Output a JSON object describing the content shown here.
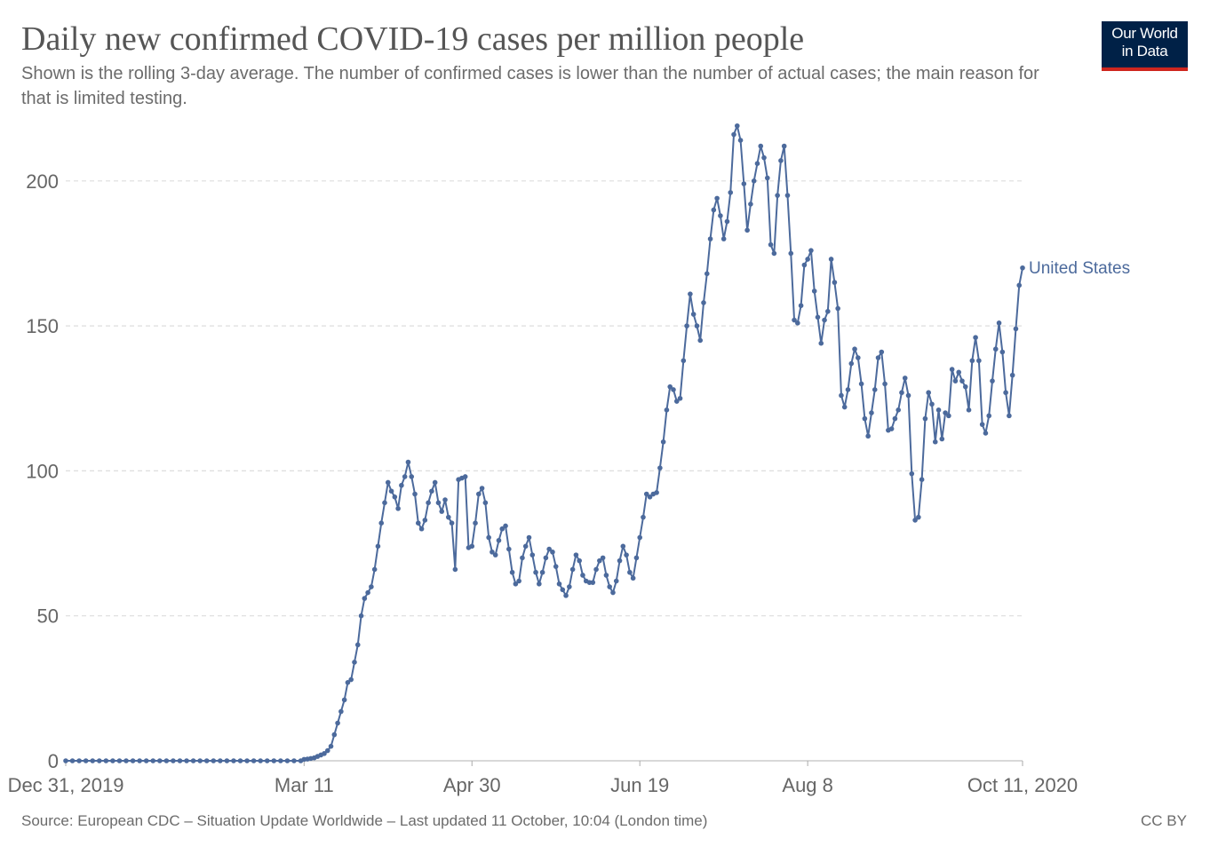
{
  "header": {
    "title": "Daily new confirmed COVID-19 cases per million people",
    "subtitle": "Shown is the rolling 3-day average. The number of confirmed cases is lower than the number of actual cases; the main reason for that is limited testing.",
    "logo_line1": "Our World",
    "logo_line2": "in Data"
  },
  "footer": {
    "source": "Source: European CDC – Situation Update Worldwide – Last updated 11 October, 10:04 (London time)",
    "license": "CC BY"
  },
  "colors": {
    "series": "#4c6a9c",
    "grid": "#dddddd",
    "axis": "#cccccc",
    "logo_bg": "#002147",
    "logo_accent": "#ce261e"
  },
  "chart_data": {
    "type": "line",
    "title": "Daily new confirmed COVID-19 cases per million people",
    "subtitle": "Shown is the rolling 3-day average. The number of confirmed cases is lower than the number of actual cases; the main reason for that is limited testing.",
    "x_start": "2019-12-31",
    "x_end": "2020-10-11",
    "x_ticks": [
      {
        "day": 0,
        "label": "Dec 31, 2019"
      },
      {
        "day": 71,
        "label": "Mar 11"
      },
      {
        "day": 121,
        "label": "Apr 30"
      },
      {
        "day": 171,
        "label": "Jun 19"
      },
      {
        "day": 221,
        "label": "Aug 8"
      },
      {
        "day": 285,
        "label": "Oct 11, 2020"
      }
    ],
    "y_ticks": [
      0,
      50,
      100,
      150,
      200
    ],
    "ylim": [
      0,
      220
    ],
    "grid": true,
    "series": [
      {
        "name": "United States",
        "points": [
          [
            0,
            0
          ],
          [
            2,
            0
          ],
          [
            4,
            0
          ],
          [
            6,
            0
          ],
          [
            8,
            0
          ],
          [
            10,
            0
          ],
          [
            12,
            0
          ],
          [
            14,
            0
          ],
          [
            16,
            0
          ],
          [
            18,
            0
          ],
          [
            20,
            0
          ],
          [
            22,
            0
          ],
          [
            24,
            0
          ],
          [
            26,
            0
          ],
          [
            28,
            0
          ],
          [
            30,
            0
          ],
          [
            32,
            0
          ],
          [
            34,
            0
          ],
          [
            36,
            0
          ],
          [
            38,
            0
          ],
          [
            40,
            0
          ],
          [
            42,
            0
          ],
          [
            44,
            0
          ],
          [
            46,
            0
          ],
          [
            48,
            0
          ],
          [
            50,
            0
          ],
          [
            52,
            0
          ],
          [
            54,
            0
          ],
          [
            56,
            0
          ],
          [
            58,
            0
          ],
          [
            60,
            0
          ],
          [
            62,
            0
          ],
          [
            64,
            0
          ],
          [
            66,
            0
          ],
          [
            68,
            0
          ],
          [
            70,
            0
          ],
          [
            71,
            0.5
          ],
          [
            72,
            0.6
          ],
          [
            73,
            0.8
          ],
          [
            74,
            1.0
          ],
          [
            75,
            1.5
          ],
          [
            76,
            2
          ],
          [
            77,
            2.5
          ],
          [
            78,
            3.5
          ],
          [
            79,
            5
          ],
          [
            80,
            9
          ],
          [
            81,
            13
          ],
          [
            82,
            17
          ],
          [
            83,
            21
          ],
          [
            84,
            27
          ],
          [
            85,
            28
          ],
          [
            86,
            34
          ],
          [
            87,
            40
          ],
          [
            88,
            50
          ],
          [
            89,
            56
          ],
          [
            90,
            58
          ],
          [
            91,
            60
          ],
          [
            92,
            66
          ],
          [
            93,
            74
          ],
          [
            94,
            82
          ],
          [
            95,
            89
          ],
          [
            96,
            96
          ],
          [
            97,
            93
          ],
          [
            98,
            91
          ],
          [
            99,
            87
          ],
          [
            100,
            95
          ],
          [
            101,
            98
          ],
          [
            102,
            103
          ],
          [
            103,
            98
          ],
          [
            104,
            92
          ],
          [
            105,
            82
          ],
          [
            106,
            80
          ],
          [
            107,
            83
          ],
          [
            108,
            89
          ],
          [
            109,
            93
          ],
          [
            110,
            96
          ],
          [
            111,
            89
          ],
          [
            112,
            86
          ],
          [
            113,
            90
          ],
          [
            114,
            84
          ],
          [
            115,
            82
          ],
          [
            116,
            66
          ],
          [
            117,
            97
          ],
          [
            118,
            97.5
          ],
          [
            119,
            98
          ],
          [
            120,
            73.5
          ],
          [
            121,
            74
          ],
          [
            122,
            82
          ],
          [
            123,
            92
          ],
          [
            124,
            94
          ],
          [
            125,
            89
          ],
          [
            126,
            77
          ],
          [
            127,
            72
          ],
          [
            128,
            71
          ],
          [
            129,
            76
          ],
          [
            130,
            80
          ],
          [
            131,
            81
          ],
          [
            132,
            73
          ],
          [
            133,
            65
          ],
          [
            134,
            61
          ],
          [
            135,
            62
          ],
          [
            136,
            70
          ],
          [
            137,
            74
          ],
          [
            138,
            77
          ],
          [
            139,
            71
          ],
          [
            140,
            65
          ],
          [
            141,
            61
          ],
          [
            142,
            65
          ],
          [
            143,
            70
          ],
          [
            144,
            73
          ],
          [
            145,
            72
          ],
          [
            146,
            67
          ],
          [
            147,
            61
          ],
          [
            148,
            59
          ],
          [
            149,
            57
          ],
          [
            150,
            60
          ],
          [
            151,
            66
          ],
          [
            152,
            71
          ],
          [
            153,
            69
          ],
          [
            154,
            64
          ],
          [
            155,
            62
          ],
          [
            156,
            61.5
          ],
          [
            157,
            61.5
          ],
          [
            158,
            66
          ],
          [
            159,
            69
          ],
          [
            160,
            70
          ],
          [
            161,
            64
          ],
          [
            162,
            60
          ],
          [
            163,
            58
          ],
          [
            164,
            62
          ],
          [
            165,
            69
          ],
          [
            166,
            74
          ],
          [
            167,
            71
          ],
          [
            168,
            65
          ],
          [
            169,
            63
          ],
          [
            170,
            70
          ],
          [
            171,
            77
          ],
          [
            172,
            84
          ],
          [
            173,
            92
          ],
          [
            174,
            91
          ],
          [
            175,
            92
          ],
          [
            176,
            92.5
          ],
          [
            177,
            101
          ],
          [
            178,
            110
          ],
          [
            179,
            121
          ],
          [
            180,
            129
          ],
          [
            181,
            128
          ],
          [
            182,
            124
          ],
          [
            183,
            125
          ],
          [
            184,
            138
          ],
          [
            185,
            150
          ],
          [
            186,
            161
          ],
          [
            187,
            154
          ],
          [
            188,
            150
          ],
          [
            189,
            145
          ],
          [
            190,
            158
          ],
          [
            191,
            168
          ],
          [
            192,
            180
          ],
          [
            193,
            190
          ],
          [
            194,
            194
          ],
          [
            195,
            188
          ],
          [
            196,
            180
          ],
          [
            197,
            186
          ],
          [
            198,
            196
          ],
          [
            199,
            216
          ],
          [
            200,
            219
          ],
          [
            201,
            214
          ],
          [
            202,
            199
          ],
          [
            203,
            183
          ],
          [
            204,
            192
          ],
          [
            205,
            200
          ],
          [
            206,
            206
          ],
          [
            207,
            212
          ],
          [
            208,
            208
          ],
          [
            209,
            201
          ],
          [
            210,
            178
          ],
          [
            211,
            175
          ],
          [
            212,
            195
          ],
          [
            213,
            207
          ],
          [
            214,
            212
          ],
          [
            215,
            195
          ],
          [
            216,
            175
          ],
          [
            217,
            152
          ],
          [
            218,
            151
          ],
          [
            219,
            157
          ],
          [
            220,
            171
          ],
          [
            221,
            173
          ],
          [
            222,
            176
          ],
          [
            223,
            162
          ],
          [
            224,
            153
          ],
          [
            225,
            144
          ],
          [
            226,
            152
          ],
          [
            227,
            155
          ],
          [
            228,
            173
          ],
          [
            229,
            165
          ],
          [
            230,
            156
          ],
          [
            231,
            126
          ],
          [
            232,
            122
          ],
          [
            233,
            128
          ],
          [
            234,
            137
          ],
          [
            235,
            142
          ],
          [
            236,
            139
          ],
          [
            237,
            130
          ],
          [
            238,
            118
          ],
          [
            239,
            112
          ],
          [
            240,
            120
          ],
          [
            241,
            128
          ],
          [
            242,
            139
          ],
          [
            243,
            141
          ],
          [
            244,
            130
          ],
          [
            245,
            114
          ],
          [
            246,
            114.5
          ],
          [
            247,
            118
          ],
          [
            248,
            121
          ],
          [
            249,
            127
          ],
          [
            250,
            132
          ],
          [
            251,
            126
          ],
          [
            252,
            99
          ],
          [
            253,
            83
          ],
          [
            254,
            84
          ],
          [
            255,
            97
          ],
          [
            256,
            118
          ],
          [
            257,
            127
          ],
          [
            258,
            123
          ],
          [
            259,
            110
          ],
          [
            260,
            121
          ],
          [
            261,
            111
          ],
          [
            262,
            120
          ],
          [
            263,
            119
          ],
          [
            264,
            135
          ],
          [
            265,
            131
          ],
          [
            266,
            134
          ],
          [
            267,
            131
          ],
          [
            268,
            129
          ],
          [
            269,
            121
          ],
          [
            270,
            138
          ],
          [
            271,
            146
          ],
          [
            272,
            138
          ],
          [
            273,
            116
          ],
          [
            274,
            113
          ],
          [
            275,
            119
          ],
          [
            276,
            131
          ],
          [
            277,
            142
          ],
          [
            278,
            151
          ],
          [
            279,
            141
          ],
          [
            280,
            127
          ],
          [
            281,
            119
          ],
          [
            282,
            133
          ],
          [
            283,
            149
          ],
          [
            284,
            164
          ],
          [
            285,
            170
          ]
        ]
      }
    ]
  }
}
